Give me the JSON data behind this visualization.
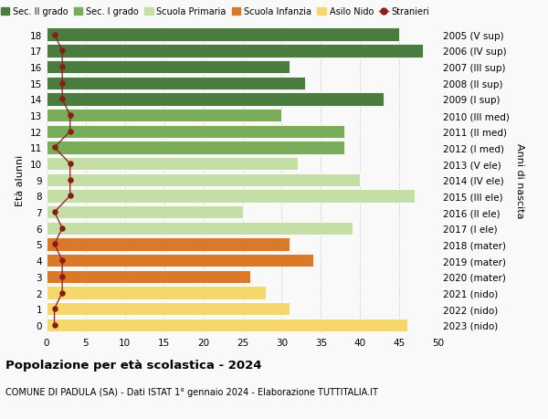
{
  "ages": [
    18,
    17,
    16,
    15,
    14,
    13,
    12,
    11,
    10,
    9,
    8,
    7,
    6,
    5,
    4,
    3,
    2,
    1,
    0
  ],
  "right_labels": [
    "2005 (V sup)",
    "2006 (IV sup)",
    "2007 (III sup)",
    "2008 (II sup)",
    "2009 (I sup)",
    "2010 (III med)",
    "2011 (II med)",
    "2012 (I med)",
    "2013 (V ele)",
    "2014 (IV ele)",
    "2015 (III ele)",
    "2016 (II ele)",
    "2017 (I ele)",
    "2018 (mater)",
    "2019 (mater)",
    "2020 (mater)",
    "2021 (nido)",
    "2022 (nido)",
    "2023 (nido)"
  ],
  "bar_values": [
    45,
    48,
    31,
    33,
    43,
    30,
    38,
    38,
    32,
    40,
    47,
    25,
    39,
    31,
    34,
    26,
    28,
    31,
    46
  ],
  "bar_colors": [
    "#4a7c3f",
    "#4a7c3f",
    "#4a7c3f",
    "#4a7c3f",
    "#4a7c3f",
    "#7aad5a",
    "#7aad5a",
    "#7aad5a",
    "#c5dea6",
    "#c5dea6",
    "#c5dea6",
    "#c5dea6",
    "#c5dea6",
    "#d97a2a",
    "#d97a2a",
    "#d97a2a",
    "#f5d76e",
    "#f5d76e",
    "#f5d76e"
  ],
  "stranieri_values": [
    1,
    2,
    2,
    2,
    2,
    3,
    3,
    1,
    3,
    3,
    3,
    1,
    2,
    1,
    2,
    2,
    2,
    1,
    1
  ],
  "stranieri_color": "#8b1a1a",
  "legend_items": [
    {
      "label": "Sec. II grado",
      "color": "#4a7c3f"
    },
    {
      "label": "Sec. I grado",
      "color": "#7aad5a"
    },
    {
      "label": "Scuola Primaria",
      "color": "#c5dea6"
    },
    {
      "label": "Scuola Infanzia",
      "color": "#d97a2a"
    },
    {
      "label": "Asilo Nido",
      "color": "#f5d76e"
    }
  ],
  "ylabel": "Età alunni",
  "right_ylabel": "Anni di nascita",
  "xlim": [
    0,
    50
  ],
  "xticks": [
    0,
    5,
    10,
    15,
    20,
    25,
    30,
    35,
    40,
    45,
    50
  ],
  "title": "Popolazione per età scolastica - 2024",
  "subtitle": "COMUNE DI PADULA (SA) - Dati ISTAT 1° gennaio 2024 - Elaborazione TUTTITALIA.IT",
  "background_color": "#f9f9f9",
  "grid_color": "#cccccc"
}
